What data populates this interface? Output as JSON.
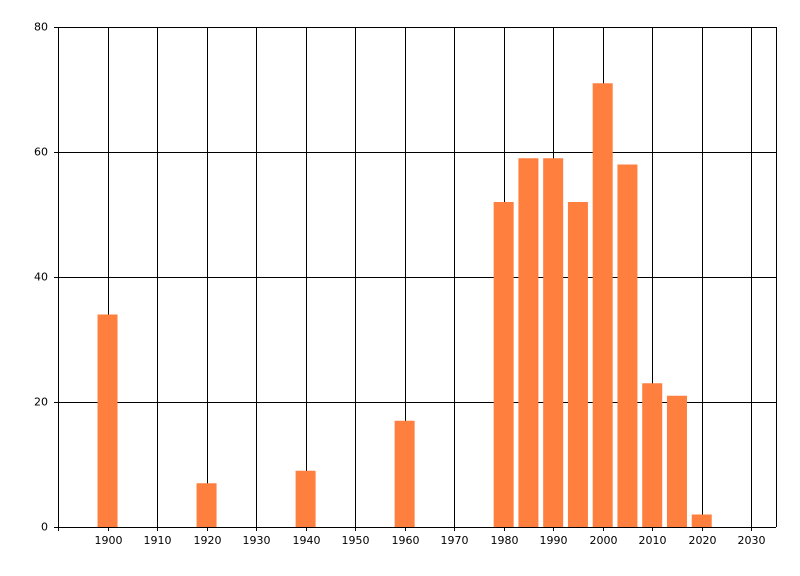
{
  "chart_data": {
    "type": "bar",
    "x": [
      1900,
      1920,
      1940,
      1960,
      1980,
      1985,
      1990,
      1995,
      2000,
      2005,
      2010,
      2015,
      2020
    ],
    "values": [
      34,
      7,
      9,
      17,
      52,
      59,
      59,
      52,
      71,
      58,
      23,
      21,
      2
    ],
    "color": "#ff7f3f",
    "xlim": [
      1890,
      2035
    ],
    "xticks": [
      1900,
      1910,
      1920,
      1930,
      1940,
      1950,
      1960,
      1970,
      1980,
      1990,
      2000,
      2010,
      2020,
      2030
    ],
    "ylim": [
      0,
      80
    ],
    "yticks": [
      0,
      20,
      40,
      60,
      80
    ],
    "grid": true
  }
}
